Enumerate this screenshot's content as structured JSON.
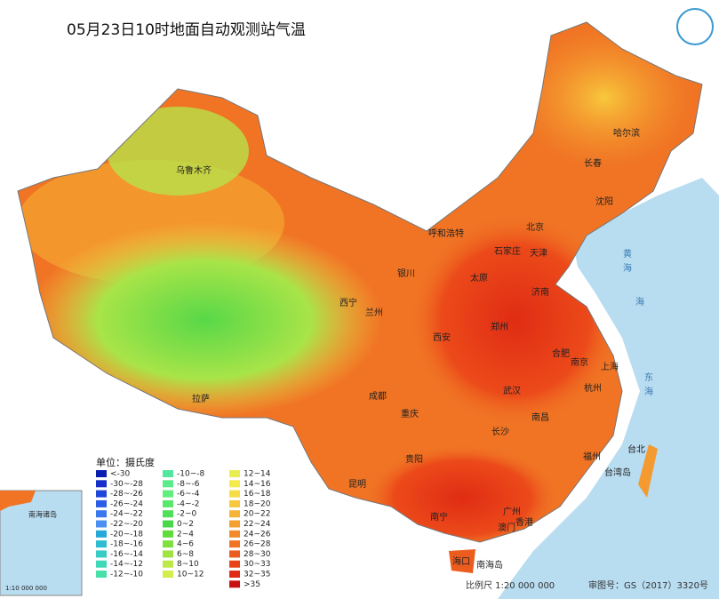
{
  "header": {
    "title": "05月23日10时地面自动观测站气温"
  },
  "legend": {
    "title": "单位：摄氏度",
    "items": [
      {
        "label": "<-30",
        "color": "#0a1fb0"
      },
      {
        "label": "-30~-28",
        "color": "#1530c8"
      },
      {
        "label": "-28~-26",
        "color": "#1e46d8"
      },
      {
        "label": "-26~-24",
        "color": "#2a5ee6"
      },
      {
        "label": "-24~-22",
        "color": "#3a78ee"
      },
      {
        "label": "-22~-20",
        "color": "#4a90f2"
      },
      {
        "label": "-20~-18",
        "color": "#28a8d8"
      },
      {
        "label": "-18~-16",
        "color": "#30bcd0"
      },
      {
        "label": "-16~-14",
        "color": "#38ccc4"
      },
      {
        "label": "-14~-12",
        "color": "#40d8b8"
      },
      {
        "label": "-12~-10",
        "color": "#48e0a8"
      },
      {
        "label": "-10~-8",
        "color": "#50e89c"
      },
      {
        "label": "-8~-6",
        "color": "#5aec8c"
      },
      {
        "label": "-6~-4",
        "color": "#60ee7c"
      },
      {
        "label": "-4~-2",
        "color": "#58e86a"
      },
      {
        "label": "-2~0",
        "color": "#4ee058"
      },
      {
        "label": "0~2",
        "color": "#48d848"
      },
      {
        "label": "2~4",
        "color": "#60dc3c"
      },
      {
        "label": "4~6",
        "color": "#80e040"
      },
      {
        "label": "6~8",
        "color": "#a0e444"
      },
      {
        "label": "8~10",
        "color": "#bce848"
      },
      {
        "label": "10~12",
        "color": "#d4ec4c"
      },
      {
        "label": "12~14",
        "color": "#e8ee50"
      },
      {
        "label": "14~16",
        "color": "#f4ea4c"
      },
      {
        "label": "16~18",
        "color": "#f8dc44"
      },
      {
        "label": "18~20",
        "color": "#f8c83c"
      },
      {
        "label": "20~22",
        "color": "#f6b436"
      },
      {
        "label": "22~24",
        "color": "#f4a030"
      },
      {
        "label": "24~26",
        "color": "#f28a2a"
      },
      {
        "label": "26~28",
        "color": "#f07424"
      },
      {
        "label": "28~30",
        "color": "#ec5c1e"
      },
      {
        "label": "30~33",
        "color": "#e84418"
      },
      {
        "label": "32~35",
        "color": "#e02c14"
      },
      {
        "label": ">35",
        "color": "#c81010"
      }
    ]
  },
  "cities": [
    "乌鲁木齐",
    "哈尔滨",
    "长春",
    "沈阳",
    "呼和浩特",
    "北京",
    "天津",
    "石家庄",
    "太原",
    "济南",
    "银川",
    "西宁",
    "兰州",
    "西安",
    "郑州",
    "合肥",
    "南京",
    "上海",
    "杭州",
    "武汉",
    "拉萨",
    "成都",
    "重庆",
    "长沙",
    "南昌",
    "贵阳",
    "福州",
    "台北",
    "昆明",
    "南宁",
    "广州",
    "香港",
    "澳门",
    "海口",
    "台湾岛",
    "南海岛"
  ],
  "seas": [
    "黄",
    "海",
    "东",
    "海",
    "海"
  ],
  "inset": {
    "label": "南海诸岛",
    "scale": "1:10 000 000"
  },
  "footer": {
    "scale": "比例尺 1:20 000 000",
    "approval": "审图号：GS（2017）3320号"
  }
}
